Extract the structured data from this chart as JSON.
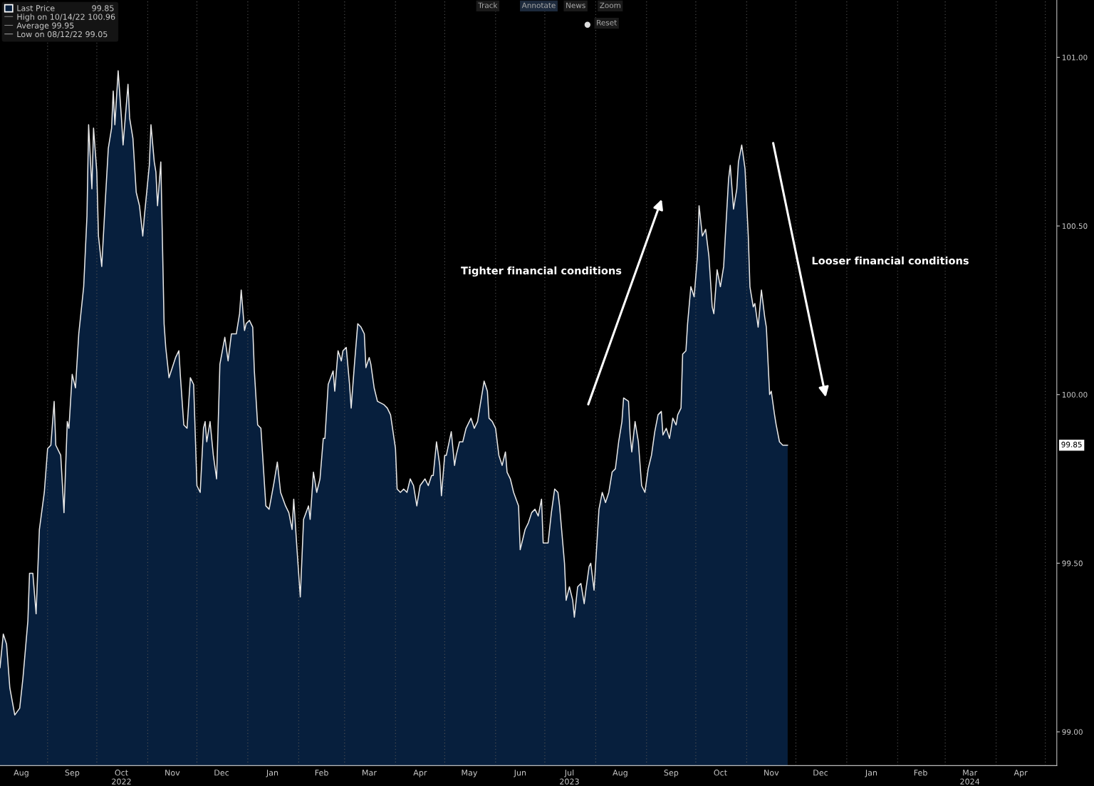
{
  "chart_data": {
    "type": "area",
    "x": [
      "2022-08-03",
      "2022-08-05",
      "2022-08-07",
      "2022-08-09",
      "2022-08-12",
      "2022-08-15",
      "2022-08-17",
      "2022-08-20",
      "2022-08-21",
      "2022-08-23",
      "2022-08-25",
      "2022-08-27",
      "2022-08-30",
      "2022-09-01",
      "2022-09-03",
      "2022-09-05",
      "2022-09-06",
      "2022-09-09",
      "2022-09-11",
      "2022-09-13",
      "2022-09-14",
      "2022-09-16",
      "2022-09-18",
      "2022-09-20",
      "2022-09-23",
      "2022-09-25",
      "2022-09-26",
      "2022-09-28",
      "2022-09-29",
      "2022-10-01",
      "2022-10-02",
      "2022-10-04",
      "2022-10-06",
      "2022-10-08",
      "2022-10-10",
      "2022-10-11",
      "2022-10-12",
      "2022-10-14",
      "2022-10-16",
      "2022-10-17",
      "2022-10-20",
      "2022-10-21",
      "2022-10-23",
      "2022-10-25",
      "2022-10-27",
      "2022-10-29",
      "2022-10-30",
      "2022-11-02",
      "2022-11-03",
      "2022-11-05",
      "2022-11-06",
      "2022-11-07",
      "2022-11-09",
      "2022-11-11",
      "2022-11-12",
      "2022-11-14",
      "2022-11-18",
      "2022-11-20",
      "2022-11-21",
      "2022-11-23",
      "2022-11-25",
      "2022-11-27",
      "2022-11-29",
      "2022-12-01",
      "2022-12-03",
      "2022-12-05",
      "2022-12-06",
      "2022-12-07",
      "2022-12-09",
      "2022-12-11",
      "2022-12-13",
      "2022-12-15",
      "2022-12-18",
      "2022-12-20",
      "2022-12-22",
      "2022-12-25",
      "2022-12-27",
      "2022-12-28",
      "2022-12-30",
      "2022-12-31",
      "2023-01-02",
      "2023-01-04",
      "2023-01-05",
      "2023-01-07",
      "2023-01-09",
      "2023-01-12",
      "2023-01-14",
      "2023-01-17",
      "2023-01-19",
      "2023-01-21",
      "2023-01-24",
      "2023-01-26",
      "2023-01-28",
      "2023-01-29",
      "2023-01-31",
      "2023-02-02",
      "2023-02-04",
      "2023-02-07",
      "2023-02-08",
      "2023-02-10",
      "2023-02-12",
      "2023-02-14",
      "2023-02-16",
      "2023-02-17",
      "2023-02-19",
      "2023-02-22",
      "2023-02-23",
      "2023-02-25",
      "2023-02-27",
      "2023-02-28",
      "2023-03-02",
      "2023-03-04",
      "2023-03-05",
      "2023-03-07",
      "2023-03-09",
      "2023-03-11",
      "2023-03-13",
      "2023-03-14",
      "2023-03-16",
      "2023-03-17",
      "2023-03-19",
      "2023-03-21",
      "2023-03-25",
      "2023-03-27",
      "2023-03-29",
      "2023-04-01",
      "2023-04-02",
      "2023-04-04",
      "2023-04-06",
      "2023-04-08",
      "2023-04-10",
      "2023-04-12",
      "2023-04-14",
      "2023-04-16",
      "2023-04-19",
      "2023-04-21",
      "2023-04-23",
      "2023-04-24",
      "2023-04-26",
      "2023-04-28",
      "2023-04-29",
      "2023-05-01",
      "2023-05-02",
      "2023-05-05",
      "2023-05-07",
      "2023-05-08",
      "2023-05-10",
      "2023-05-12",
      "2023-05-14",
      "2023-05-17",
      "2023-05-19",
      "2023-05-21",
      "2023-05-23",
      "2023-05-25",
      "2023-05-27",
      "2023-05-28",
      "2023-05-30",
      "2023-06-01",
      "2023-06-03",
      "2023-06-05",
      "2023-06-07",
      "2023-06-08",
      "2023-06-10",
      "2023-06-12",
      "2023-06-15",
      "2023-06-16",
      "2023-06-17",
      "2023-06-19",
      "2023-06-21",
      "2023-06-23",
      "2023-06-25",
      "2023-06-27",
      "2023-06-29",
      "2023-06-30",
      "2023-07-03",
      "2023-07-05",
      "2023-07-07",
      "2023-07-09",
      "2023-07-10",
      "2023-07-13",
      "2023-07-14",
      "2023-07-16",
      "2023-07-18",
      "2023-07-19",
      "2023-07-21",
      "2023-07-23",
      "2023-07-25",
      "2023-07-26",
      "2023-07-28",
      "2023-07-29",
      "2023-07-31",
      "2023-08-01",
      "2023-08-03",
      "2023-08-05",
      "2023-08-07",
      "2023-08-09",
      "2023-08-11",
      "2023-08-13",
      "2023-08-15",
      "2023-08-17",
      "2023-08-18",
      "2023-08-21",
      "2023-08-22",
      "2023-08-23",
      "2023-08-25",
      "2023-08-27",
      "2023-08-29",
      "2023-08-31",
      "2023-09-02",
      "2023-09-04",
      "2023-09-06",
      "2023-09-08",
      "2023-09-10",
      "2023-09-11",
      "2023-09-13",
      "2023-09-15",
      "2023-09-17",
      "2023-09-19",
      "2023-09-20",
      "2023-09-22",
      "2023-09-23",
      "2023-09-25",
      "2023-09-26",
      "2023-09-28",
      "2023-09-30",
      "2023-10-02",
      "2023-10-03",
      "2023-10-05",
      "2023-10-07",
      "2023-10-09",
      "2023-10-11",
      "2023-10-12",
      "2023-10-14",
      "2023-10-16",
      "2023-10-18",
      "2023-10-19",
      "2023-10-21",
      "2023-10-22",
      "2023-10-24",
      "2023-10-26",
      "2023-10-27",
      "2023-10-29",
      "2023-10-31",
      "2023-11-02",
      "2023-11-03",
      "2023-11-05",
      "2023-11-06",
      "2023-11-08",
      "2023-11-10",
      "2023-11-12",
      "2023-11-13",
      "2023-11-15",
      "2023-11-16",
      "2023-11-18",
      "2023-11-19",
      "2023-11-21",
      "2023-11-23",
      "2023-11-26"
    ],
    "series": [
      {
        "name": "Last Price",
        "color": "#071f3d",
        "values": [
          99.19,
          99.29,
          99.26,
          99.13,
          99.05,
          99.07,
          99.16,
          99.33,
          99.47,
          99.47,
          99.35,
          99.6,
          99.71,
          99.84,
          99.85,
          99.98,
          99.85,
          99.82,
          99.65,
          99.92,
          99.9,
          100.06,
          100.02,
          100.18,
          100.32,
          100.53,
          100.8,
          100.61,
          100.79,
          100.66,
          100.47,
          100.38,
          100.56,
          100.73,
          100.79,
          100.9,
          100.8,
          100.96,
          100.82,
          100.74,
          100.92,
          100.82,
          100.76,
          100.6,
          100.56,
          100.47,
          100.53,
          100.68,
          100.8,
          100.69,
          100.66,
          100.56,
          100.69,
          100.21,
          100.14,
          100.05,
          100.11,
          100.13,
          100.05,
          99.91,
          99.9,
          100.05,
          100.03,
          99.73,
          99.71,
          99.9,
          99.92,
          99.86,
          99.92,
          99.82,
          99.75,
          100.09,
          100.17,
          100.1,
          100.18,
          100.18,
          100.24,
          100.31,
          100.19,
          100.21,
          100.22,
          100.2,
          100.07,
          99.91,
          99.9,
          99.67,
          99.66,
          99.74,
          99.8,
          99.71,
          99.67,
          99.65,
          99.6,
          99.69,
          99.54,
          99.4,
          99.63,
          99.67,
          99.63,
          99.77,
          99.71,
          99.75,
          99.87,
          99.87,
          100.03,
          100.07,
          100.01,
          100.13,
          100.1,
          100.13,
          100.14,
          100.03,
          99.96,
          100.09,
          100.21,
          100.2,
          100.18,
          100.08,
          100.11,
          100.09,
          100.02,
          99.98,
          99.97,
          99.96,
          99.94,
          99.84,
          99.72,
          99.71,
          99.72,
          99.71,
          99.75,
          99.73,
          99.67,
          99.73,
          99.75,
          99.73,
          99.76,
          99.76,
          99.86,
          99.79,
          99.7,
          99.82,
          99.82,
          99.89,
          99.79,
          99.82,
          99.86,
          99.86,
          99.9,
          99.93,
          99.9,
          99.92,
          99.98,
          100.04,
          100.01,
          99.93,
          99.92,
          99.9,
          99.82,
          99.79,
          99.83,
          99.77,
          99.75,
          99.71,
          99.67,
          99.54,
          99.56,
          99.6,
          99.62,
          99.65,
          99.66,
          99.64,
          99.69,
          99.56,
          99.56,
          99.65,
          99.72,
          99.71,
          99.67,
          99.5,
          99.39,
          99.43,
          99.39,
          99.34,
          99.43,
          99.44,
          99.38,
          99.42,
          99.49,
          99.5,
          99.42,
          99.5,
          99.66,
          99.71,
          99.68,
          99.71,
          99.77,
          99.78,
          99.86,
          99.92,
          99.99,
          99.98,
          99.88,
          99.83,
          99.92,
          99.86,
          99.73,
          99.71,
          99.78,
          99.82,
          99.89,
          99.94,
          99.95,
          99.88,
          99.9,
          99.87,
          99.93,
          99.91,
          99.94,
          99.96,
          100.12,
          100.13,
          100.21,
          100.32,
          100.29,
          100.41,
          100.56,
          100.47,
          100.49,
          100.41,
          100.26,
          100.24,
          100.37,
          100.32,
          100.38,
          100.47,
          100.64,
          100.68,
          100.55,
          100.61,
          100.69,
          100.74,
          100.67,
          100.47,
          100.32,
          100.26,
          100.27,
          100.2,
          100.31,
          100.23,
          100.2,
          100.0,
          100.01,
          99.94,
          99.91,
          99.86,
          99.85,
          99.85
        ]
      }
    ],
    "xlim": [
      "2022-08-03",
      "2024-05-08"
    ],
    "ylim": [
      98.9,
      101.17
    ],
    "yticks": [
      {
        "value": 99,
        "label": "99.00"
      },
      {
        "value": 99.5,
        "label": "99.50"
      },
      {
        "value": 100,
        "label": "100.00"
      },
      {
        "value": 100.5,
        "label": "100.50"
      },
      {
        "value": 101,
        "label": "101.00"
      }
    ],
    "xticks": [
      {
        "value": "2022-08-16",
        "label": "Aug"
      },
      {
        "value": "2022-09-01",
        "label": null
      },
      {
        "value": "2022-09-16",
        "label": "Sep"
      },
      {
        "value": "2022-10-01",
        "label": null
      },
      {
        "value": "2022-10-16",
        "label": "Oct\n2022"
      },
      {
        "value": "2022-11-01",
        "label": null
      },
      {
        "value": "2022-11-16",
        "label": "Nov"
      },
      {
        "value": "2022-12-01",
        "label": null
      },
      {
        "value": "2022-12-16",
        "label": "Dec"
      },
      {
        "value": "2023-01-01",
        "label": null
      },
      {
        "value": "2023-01-16",
        "label": "Jan"
      },
      {
        "value": "2023-02-01",
        "label": null
      },
      {
        "value": "2023-02-15",
        "label": "Feb"
      },
      {
        "value": "2023-03-01",
        "label": null
      },
      {
        "value": "2023-03-16",
        "label": "Mar"
      },
      {
        "value": "2023-04-01",
        "label": null
      },
      {
        "value": "2023-04-16",
        "label": "Apr"
      },
      {
        "value": "2023-05-01",
        "label": null
      },
      {
        "value": "2023-05-16",
        "label": "May"
      },
      {
        "value": "2023-06-01",
        "label": null
      },
      {
        "value": "2023-06-16",
        "label": "Jun"
      },
      {
        "value": "2023-07-01",
        "label": null
      },
      {
        "value": "2023-07-16",
        "label": "Jul\n2023"
      },
      {
        "value": "2023-08-01",
        "label": null
      },
      {
        "value": "2023-08-16",
        "label": "Aug"
      },
      {
        "value": "2023-09-01",
        "label": null
      },
      {
        "value": "2023-09-16",
        "label": "Sep"
      },
      {
        "value": "2023-10-01",
        "label": null
      },
      {
        "value": "2023-10-16",
        "label": "Oct"
      },
      {
        "value": "2023-11-01",
        "label": null
      },
      {
        "value": "2023-11-16",
        "label": "Nov"
      },
      {
        "value": "2023-12-01",
        "label": null
      },
      {
        "value": "2023-12-16",
        "label": "Dec"
      },
      {
        "value": "2024-01-01",
        "label": null
      },
      {
        "value": "2024-01-16",
        "label": "Jan"
      },
      {
        "value": "2024-02-01",
        "label": null
      },
      {
        "value": "2024-02-15",
        "label": "Feb"
      },
      {
        "value": "2024-03-01",
        "label": null
      },
      {
        "value": "2024-03-16",
        "label": "Mar\n2024"
      },
      {
        "value": "2024-04-01",
        "label": null
      },
      {
        "value": "2024-04-16",
        "label": "Apr"
      },
      {
        "value": "2024-05-01",
        "label": null
      }
    ],
    "grid": "x",
    "legend": "top left",
    "annotations": [
      "99.85",
      "Tighter financial conditions",
      "Looser financial conditions",
      "99.85",
      "High on 10/14/22 100.96",
      "Average 99.95",
      "Low on 08/12/22 99.05",
      "Track",
      "Annotate",
      "News",
      "Zoom",
      "Reset"
    ]
  }
}
